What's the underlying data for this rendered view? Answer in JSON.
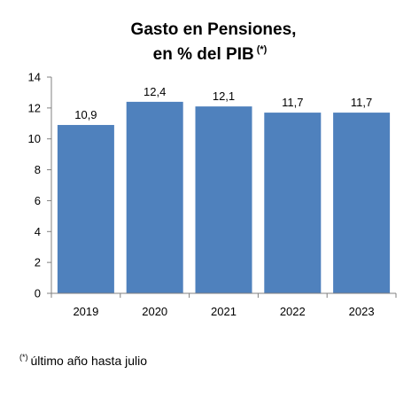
{
  "chart_data": {
    "type": "bar",
    "title_line1": "Gasto en Pensiones,",
    "title_line2": "en % del PIB",
    "title_marker": "(*)",
    "categories": [
      "2019",
      "2020",
      "2021",
      "2022",
      "2023"
    ],
    "values": [
      10.9,
      12.4,
      12.1,
      11.7,
      11.7
    ],
    "value_labels": [
      "10,9",
      "12,4",
      "12,1",
      "11,7",
      "11,7"
    ],
    "ylim": [
      0,
      14
    ],
    "yticks": [
      "0",
      "2",
      "4",
      "6",
      "8",
      "10",
      "12",
      "14"
    ],
    "xlabel": "",
    "ylabel": "",
    "grid": false,
    "legend": "none",
    "bar_color": "#4F81BD"
  },
  "footnote": {
    "marker": "(*)",
    "text": "último año hasta julio"
  }
}
